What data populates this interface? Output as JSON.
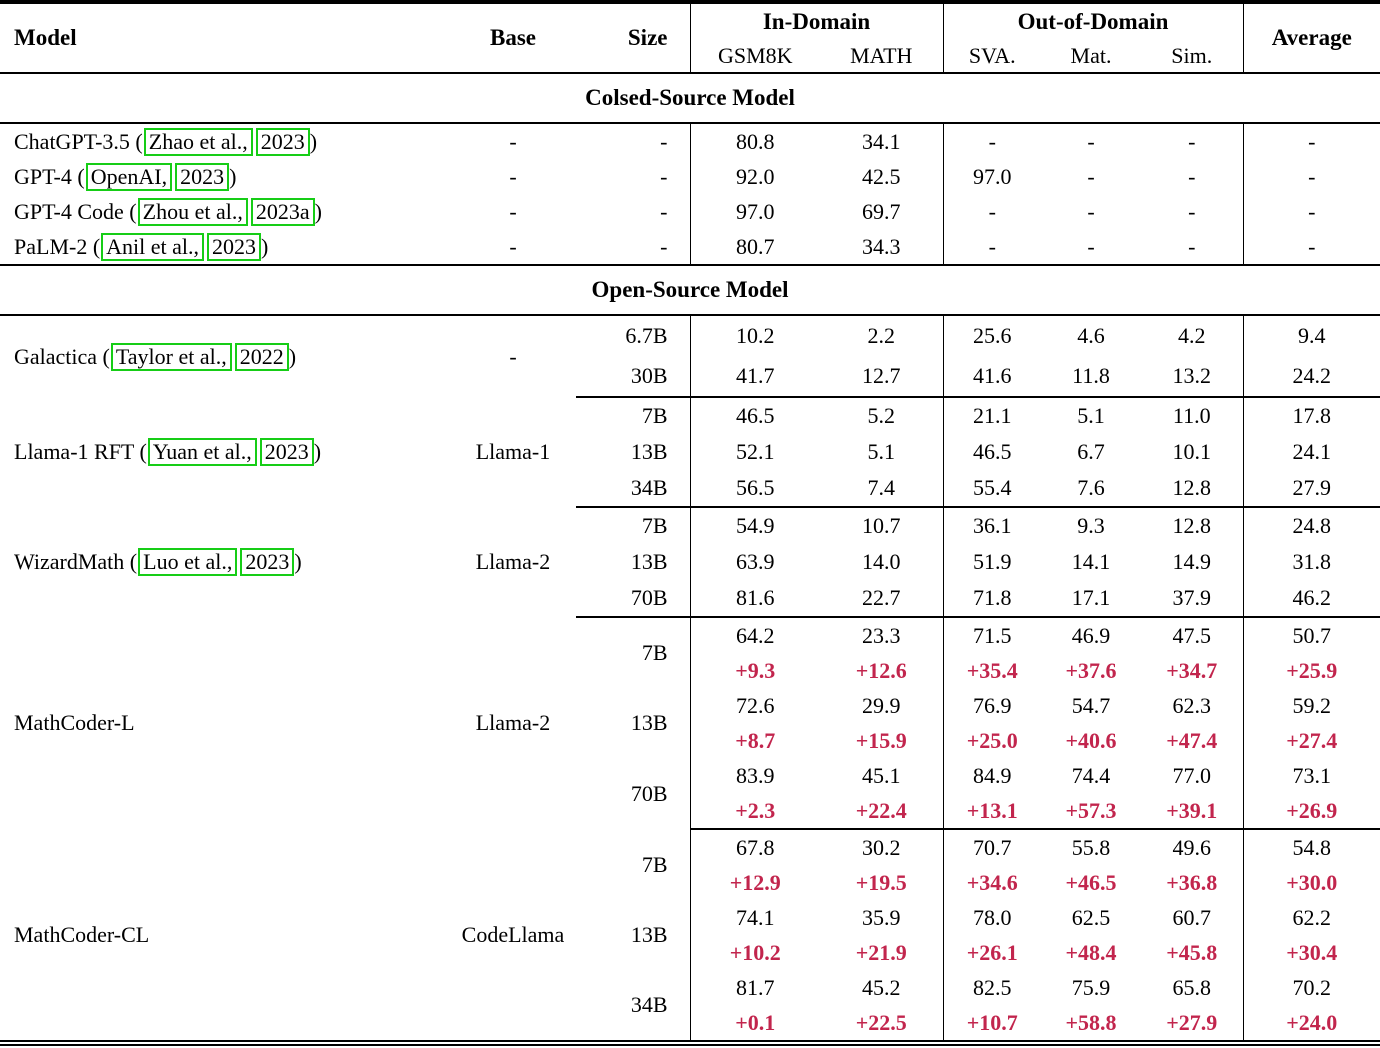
{
  "colors": {
    "delta_red": "#C2254D",
    "citation_green": "#16CD16"
  },
  "header": {
    "model": "Model",
    "base": "Base",
    "size": "Size",
    "in_domain": "In-Domain",
    "out_of_domain": "Out-of-Domain",
    "average": "Average",
    "gsm8k": "GSM8K",
    "math": "MATH",
    "sva": "SVA.",
    "mat": "Mat.",
    "sim": "Sim."
  },
  "sections": {
    "closed_title": "Colsed-Source Model",
    "open_title": "Open-Source Model"
  },
  "closed_rows": [
    {
      "prefix": "ChatGPT-3.5 (",
      "cite": "Zhao et al.,",
      "year": "2023",
      "suffix": ")",
      "base": "-",
      "size": "-",
      "values": [
        "80.8",
        "34.1",
        "-",
        "-",
        "-",
        "-"
      ]
    },
    {
      "prefix": "GPT-4 (",
      "cite": "OpenAI,",
      "year": "2023",
      "suffix": ")",
      "base": "-",
      "size": "-",
      "values": [
        "92.0",
        "42.5",
        "97.0",
        "-",
        "-",
        "-"
      ]
    },
    {
      "prefix": "GPT-4 Code (",
      "cite": "Zhou et al.,",
      "year": "2023a",
      "suffix": ")",
      "base": "-",
      "size": "-",
      "values": [
        "97.0",
        "69.7",
        "-",
        "-",
        "-",
        "-"
      ]
    },
    {
      "prefix": "PaLM-2 (",
      "cite": "Anil et al.,",
      "year": "2023",
      "suffix": ")",
      "base": "-",
      "size": "-",
      "values": [
        "80.7",
        "34.3",
        "-",
        "-",
        "-",
        "-"
      ]
    }
  ],
  "galactica": {
    "prefix": "Galactica (",
    "cite": "Taylor et al.,",
    "year": "2022",
    "suffix": ")",
    "base": "-",
    "rows": [
      {
        "size": "6.7B",
        "values": [
          "10.2",
          "2.2",
          "25.6",
          "4.6",
          "4.2",
          "9.4"
        ]
      },
      {
        "size": "30B",
        "values": [
          "41.7",
          "12.7",
          "41.6",
          "11.8",
          "13.2",
          "24.2"
        ]
      }
    ]
  },
  "llama1_rft": {
    "prefix": "Llama-1 RFT (",
    "cite": "Yuan et al.,",
    "year": "2023",
    "suffix": ")",
    "base": "Llama-1",
    "rows": [
      {
        "size": "7B",
        "values": [
          "46.5",
          "5.2",
          "21.1",
          "5.1",
          "11.0",
          "17.8"
        ]
      },
      {
        "size": "13B",
        "values": [
          "52.1",
          "5.1",
          "46.5",
          "6.7",
          "10.1",
          "24.1"
        ]
      },
      {
        "size": "34B",
        "values": [
          "56.5",
          "7.4",
          "55.4",
          "7.6",
          "12.8",
          "27.9"
        ]
      }
    ]
  },
  "wizardmath": {
    "prefix": "WizardMath (",
    "cite": "Luo et al.,",
    "year": "2023",
    "suffix": ")",
    "base": "Llama-2",
    "rows": [
      {
        "size": "7B",
        "values": [
          "54.9",
          "10.7",
          "36.1",
          "9.3",
          "12.8",
          "24.8"
        ]
      },
      {
        "size": "13B",
        "values": [
          "63.9",
          "14.0",
          "51.9",
          "14.1",
          "14.9",
          "31.8"
        ]
      },
      {
        "size": "70B",
        "values": [
          "81.6",
          "22.7",
          "71.8",
          "17.1",
          "37.9",
          "46.2"
        ]
      }
    ]
  },
  "mathcoder_l": {
    "name": "MathCoder-L",
    "base": "Llama-2",
    "rows": [
      {
        "size": "7B",
        "values": [
          "64.2",
          "23.3",
          "71.5",
          "46.9",
          "47.5",
          "50.7"
        ],
        "deltas": [
          "+9.3",
          "+12.6",
          "+35.4",
          "+37.6",
          "+34.7",
          "+25.9"
        ]
      },
      {
        "size": "13B",
        "values": [
          "72.6",
          "29.9",
          "76.9",
          "54.7",
          "62.3",
          "59.2"
        ],
        "deltas": [
          "+8.7",
          "+15.9",
          "+25.0",
          "+40.6",
          "+47.4",
          "+27.4"
        ]
      },
      {
        "size": "70B",
        "values": [
          "83.9",
          "45.1",
          "84.9",
          "74.4",
          "77.0",
          "73.1"
        ],
        "deltas": [
          "+2.3",
          "+22.4",
          "+13.1",
          "+57.3",
          "+39.1",
          "+26.9"
        ]
      }
    ]
  },
  "mathcoder_cl": {
    "name": "MathCoder-CL",
    "base": "CodeLlama",
    "rows": [
      {
        "size": "7B",
        "values": [
          "67.8",
          "30.2",
          "70.7",
          "55.8",
          "49.6",
          "54.8"
        ],
        "deltas": [
          "+12.9",
          "+19.5",
          "+34.6",
          "+46.5",
          "+36.8",
          "+30.0"
        ]
      },
      {
        "size": "13B",
        "values": [
          "74.1",
          "35.9",
          "78.0",
          "62.5",
          "60.7",
          "62.2"
        ],
        "deltas": [
          "+10.2",
          "+21.9",
          "+26.1",
          "+48.4",
          "+45.8",
          "+30.4"
        ]
      },
      {
        "size": "34B",
        "values": [
          "81.7",
          "45.2",
          "82.5",
          "75.9",
          "65.8",
          "70.2"
        ],
        "deltas": [
          "+0.1",
          "+22.5",
          "+10.7",
          "+58.8",
          "+27.9",
          "+24.0"
        ]
      }
    ]
  }
}
